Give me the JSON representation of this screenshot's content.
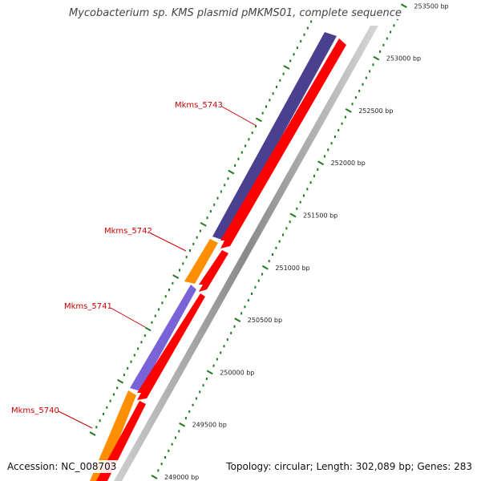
{
  "map": {
    "title": "Mycobacterium sp. KMS plasmid pMKMS01, complete sequence",
    "accession": "Accession: NC_008703",
    "summary": "Topology: circular; Length: 302,089 bp; Genes: 283"
  },
  "genes": [
    {
      "id": "gene-mkms-5740",
      "label": "Mkms_5740"
    },
    {
      "id": "gene-mkms-5741",
      "label": "Mkms_5741"
    },
    {
      "id": "gene-mkms-5742",
      "label": "Mkms_5742"
    },
    {
      "id": "gene-mkms-5743",
      "label": "Mkms_5743"
    }
  ],
  "ticks": [
    "249000 bp",
    "249500 bp",
    "250000 bp",
    "250500 bp",
    "251000 bp",
    "251500 bp",
    "252000 bp",
    "252500 bp",
    "253000 bp",
    "253500 bp"
  ],
  "colors": {
    "purple_dark": "#4b3f8f",
    "purple_light": "#7a63d8",
    "orange": "#ff8f00",
    "red": "#ff0000",
    "tick_green": "#1f7a1f",
    "label_red": "#cc0000",
    "backbone_gray": "#9a9a9a"
  }
}
